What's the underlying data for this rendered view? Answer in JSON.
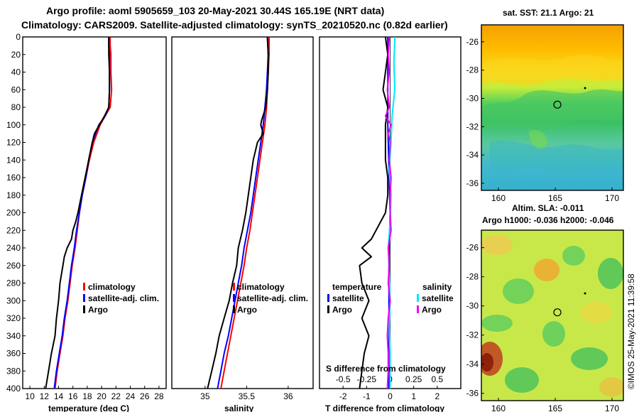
{
  "header": {
    "line1": "Argo profile: aoml 5905659_103 20-May-2021 30.44S 165.19E (NRT data)",
    "line2": "Climatology: CARS2009. Satellite-adjusted climatology: synTS_20210520.nc (0.82d earlier)"
  },
  "colors": {
    "climatology": "#ff0000",
    "satellite": "#0000ff",
    "argo": "#000000",
    "temp_diff_satellite": "#0000ff",
    "sal_diff_satellite": "#00e5ff",
    "sal_diff_argo": "#ee00ee"
  },
  "depth_axis": {
    "min": 0,
    "max": 400,
    "ticks": [
      0,
      20,
      40,
      60,
      80,
      100,
      120,
      140,
      160,
      180,
      200,
      220,
      240,
      260,
      280,
      300,
      320,
      340,
      360,
      380,
      400
    ],
    "tick_labels": [
      "0",
      "20",
      "40",
      "60",
      "80",
      "100",
      "120",
      "140",
      "160",
      "180",
      "200",
      "220",
      "240",
      "260",
      "280",
      "300",
      "320",
      "340",
      "360",
      "380",
      "400"
    ]
  },
  "chart_data": [
    {
      "type": "line",
      "id": "temperature",
      "xlabel": "temperature (deg C)",
      "xlim": [
        9,
        29
      ],
      "xticks": [
        10,
        12,
        14,
        16,
        18,
        20,
        22,
        24,
        26,
        28
      ],
      "xtick_labels": [
        "10",
        "12",
        "14",
        "16",
        "18",
        "20",
        "22",
        "24",
        "26",
        "28"
      ],
      "ylim": [
        0,
        400
      ],
      "legend": [
        "climatology",
        "satellite-adj. clim.",
        "Argo"
      ],
      "series": [
        {
          "name": "climatology",
          "color_key": "climatology",
          "depth": [
            0,
            10,
            20,
            40,
            60,
            80,
            90,
            100,
            120,
            140,
            160,
            180,
            200,
            220,
            240,
            260,
            280,
            300,
            320,
            340,
            360,
            380,
            400
          ],
          "values": [
            21.2,
            21.2,
            21.3,
            21.3,
            21.4,
            21.2,
            20.5,
            19.8,
            18.9,
            18.3,
            17.8,
            17.3,
            16.9,
            16.6,
            16.3,
            15.9,
            15.6,
            15.3,
            14.9,
            14.6,
            14.2,
            13.8,
            13.5
          ]
        },
        {
          "name": "satellite-adj. clim.",
          "color_key": "satellite",
          "depth": [
            0,
            10,
            20,
            40,
            60,
            80,
            90,
            100,
            120,
            140,
            160,
            180,
            200,
            220,
            240,
            260,
            280,
            300,
            320,
            340,
            360,
            380,
            400
          ],
          "values": [
            21.0,
            21.0,
            21.1,
            21.1,
            21.1,
            21.0,
            20.5,
            19.6,
            18.7,
            18.2,
            17.8,
            17.3,
            16.9,
            16.5,
            16.2,
            15.8,
            15.5,
            15.2,
            14.8,
            14.5,
            14.1,
            13.7,
            13.4
          ]
        },
        {
          "name": "Argo",
          "color_key": "argo",
          "depth": [
            0,
            10,
            20,
            40,
            60,
            80,
            90,
            100,
            110,
            120,
            140,
            160,
            180,
            200,
            210,
            220,
            230,
            240,
            250,
            260,
            280,
            300,
            320,
            340,
            360,
            380,
            400
          ],
          "values": [
            21.0,
            21.0,
            21.0,
            21.1,
            21.1,
            21.0,
            20.4,
            19.7,
            19.0,
            18.7,
            18.2,
            17.7,
            17.2,
            16.7,
            16.4,
            16.0,
            15.8,
            15.2,
            14.8,
            14.6,
            14.2,
            14.0,
            13.7,
            13.5,
            13.0,
            12.6,
            12.2
          ]
        }
      ]
    },
    {
      "type": "line",
      "id": "salinity",
      "xlabel": "salinity",
      "xlim": [
        34.6,
        36.3
      ],
      "xticks": [
        35,
        35.5,
        36
      ],
      "xtick_labels": [
        "35",
        "35.5",
        "36"
      ],
      "ylim": [
        0,
        400
      ],
      "legend": [
        "climatology",
        "satellite-adj. clim.",
        "Argo"
      ],
      "series": [
        {
          "name": "climatology",
          "color_key": "climatology",
          "depth": [
            0,
            20,
            40,
            60,
            80,
            100,
            120,
            140,
            160,
            180,
            200,
            220,
            240,
            260,
            280,
            300,
            320,
            340,
            360,
            380,
            400
          ],
          "values": [
            35.77,
            35.77,
            35.76,
            35.75,
            35.74,
            35.72,
            35.69,
            35.66,
            35.63,
            35.6,
            35.57,
            35.54,
            35.5,
            35.47,
            35.43,
            35.39,
            35.35,
            35.31,
            35.27,
            35.23,
            35.19
          ]
        },
        {
          "name": "satellite-adj. clim.",
          "color_key": "satellite",
          "depth": [
            0,
            20,
            40,
            60,
            80,
            100,
            120,
            140,
            160,
            180,
            200,
            220,
            240,
            260,
            280,
            300,
            320,
            340,
            360,
            380,
            400
          ],
          "values": [
            35.75,
            35.76,
            35.75,
            35.74,
            35.72,
            35.7,
            35.67,
            35.64,
            35.61,
            35.58,
            35.55,
            35.51,
            35.47,
            35.44,
            35.4,
            35.36,
            35.32,
            35.28,
            35.23,
            35.19,
            35.15
          ]
        },
        {
          "name": "Argo",
          "color_key": "argo",
          "depth": [
            0,
            20,
            40,
            60,
            80,
            95,
            100,
            110,
            120,
            140,
            160,
            180,
            200,
            220,
            240,
            260,
            280,
            300,
            320,
            340,
            360,
            380,
            400
          ],
          "values": [
            35.75,
            35.76,
            35.76,
            35.75,
            35.73,
            35.68,
            35.67,
            35.7,
            35.63,
            35.58,
            35.55,
            35.52,
            35.49,
            35.45,
            35.4,
            35.38,
            35.33,
            35.29,
            35.23,
            35.17,
            35.13,
            35.08,
            35.03
          ]
        }
      ]
    },
    {
      "type": "line",
      "id": "difference",
      "xlabel": "T difference from climatology",
      "xlabel_top": "S difference from climatology",
      "xlim": [
        -3,
        3
      ],
      "xticks": [
        -2,
        -1,
        0,
        1,
        2
      ],
      "xtick_labels": [
        "-2",
        "-1",
        "0",
        "1",
        "2"
      ],
      "xticks_secondary": [
        -0.5,
        -0.25,
        0,
        0.25,
        0.5
      ],
      "xticks_secondary_labels": [
        "-0.5",
        "-0.25",
        "0",
        "0.25",
        "0.5"
      ],
      "ylim": [
        0,
        400
      ],
      "legend_temperature_title": "temperature",
      "legend_salinity_title": "salinity",
      "legend_items": {
        "satellite": "satellite",
        "argo": "Argo"
      },
      "series": [
        {
          "name": "temperature satellite",
          "color_key": "temp_diff_satellite",
          "depth": [
            0,
            50,
            100,
            150,
            200,
            250,
            300,
            350,
            400
          ],
          "values": [
            -0.1,
            -0.1,
            -0.1,
            -0.05,
            0.0,
            -0.05,
            -0.05,
            -0.05,
            -0.05
          ]
        },
        {
          "name": "temperature Argo",
          "color_key": "argo",
          "depth": [
            0,
            20,
            40,
            60,
            80,
            100,
            120,
            140,
            160,
            180,
            200,
            220,
            230,
            240,
            250,
            260,
            280,
            300,
            320,
            340,
            360,
            380,
            400
          ],
          "values": [
            -0.2,
            -0.1,
            -0.2,
            -0.3,
            -0.1,
            -0.2,
            -0.2,
            -0.2,
            -0.1,
            -0.1,
            -0.2,
            -0.6,
            -0.8,
            -1.2,
            -0.8,
            -1.3,
            -1.2,
            -0.9,
            -1.2,
            -0.9,
            -1.1,
            -1.2,
            -1.3
          ]
        },
        {
          "name": "salinity satellite",
          "color_key": "sal_diff_satellite",
          "depth": [
            0,
            30,
            60,
            90,
            120,
            150,
            180,
            210,
            240,
            270,
            300,
            330,
            360,
            400
          ],
          "values": [
            0.05,
            0.04,
            0.05,
            0.02,
            0.01,
            -0.01,
            0.01,
            0.0,
            -0.02,
            -0.01,
            0.0,
            -0.01,
            0.0,
            0.0
          ]
        },
        {
          "name": "salinity Argo",
          "color_key": "sal_diff_argo",
          "depth": [
            0,
            20,
            40,
            60,
            80,
            90,
            100,
            110,
            120,
            140,
            160,
            180,
            200,
            220,
            240,
            260,
            280,
            300,
            320,
            340,
            360,
            380,
            400
          ],
          "values": [
            -0.01,
            -0.02,
            -0.01,
            -0.03,
            -0.01,
            -0.05,
            0.01,
            -0.02,
            0.0,
            -0.01,
            0.01,
            0.0,
            0.0,
            0.01,
            -0.02,
            -0.01,
            -0.02,
            0.0,
            -0.02,
            -0.03,
            -0.02,
            -0.02,
            -0.03
          ]
        }
      ]
    },
    {
      "type": "heatmap",
      "id": "sst_map",
      "title": "sat. SST: 21.1 Argo: 21",
      "xlim": [
        158.5,
        171
      ],
      "ylim": [
        -36.5,
        -24.8
      ],
      "xticks": [
        160,
        165,
        170
      ],
      "xtick_labels": [
        "160",
        "165",
        "170"
      ],
      "yticks": [
        -26,
        -28,
        -30,
        -32,
        -34,
        -36
      ],
      "ytick_labels": [
        "-26",
        "-28",
        "-30",
        "-32",
        "-34",
        "-36"
      ],
      "profile_location": {
        "lon": 165.19,
        "lat": -30.44
      }
    },
    {
      "type": "heatmap",
      "id": "sla_map",
      "title": "Altim. SLA: -0.011",
      "subtitle": "Argo h1000: -0.036 h2000: -0.046",
      "xlim": [
        158.5,
        171
      ],
      "ylim": [
        -36.5,
        -24.8
      ],
      "xticks": [
        160,
        165,
        170
      ],
      "xtick_labels": [
        "160",
        "165",
        "170"
      ],
      "yticks": [
        -26,
        -28,
        -30,
        -32,
        -34,
        -36
      ],
      "ytick_labels": [
        "-26",
        "-28",
        "-30",
        "-32",
        "-34",
        "-36"
      ],
      "profile_location": {
        "lon": 165.19,
        "lat": -30.44
      }
    }
  ],
  "credit": "©IMOS 25-May-2021 11:39:58"
}
